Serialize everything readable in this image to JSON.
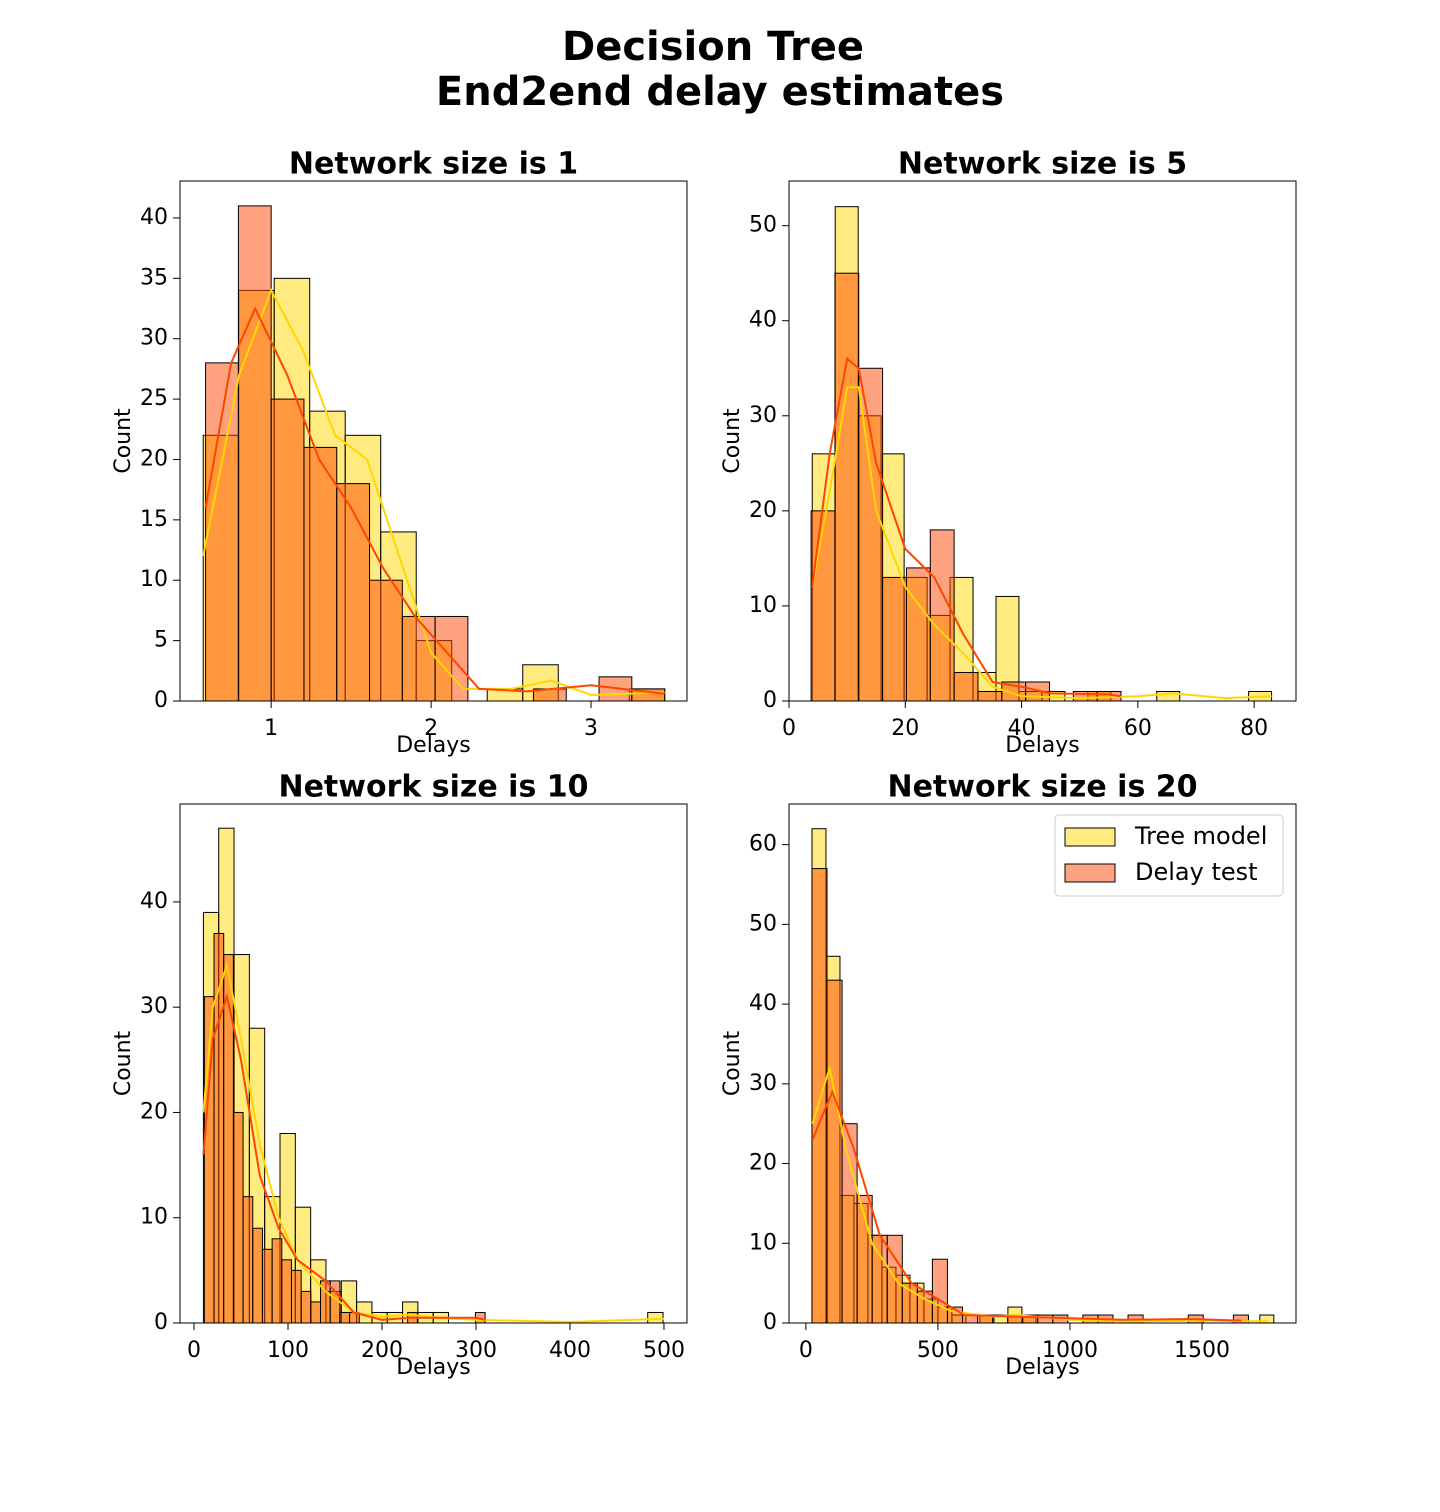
{
  "title": [
    "Decision Tree",
    "End2end delay estimates"
  ],
  "chart_data": [
    {
      "type": "histogram",
      "title": "Network size is 1",
      "x_label": "Delays",
      "y_label": "Count",
      "xlim": [
        0.43,
        3.6
      ],
      "ylim": [
        0,
        43.06
      ],
      "xticks": [
        1,
        2,
        3
      ],
      "yticks": [
        0,
        5,
        10,
        15,
        20,
        25,
        30,
        35,
        40
      ],
      "series": [
        {
          "name": "Tree model",
          "color": "#ffd700",
          "bins": [
            0.575,
            0.797,
            1.019,
            1.241,
            1.463,
            1.685,
            1.907,
            2.129,
            2.351,
            2.573,
            2.795,
            3.017,
            3.239,
            3.461
          ],
          "values": [
            22,
            34,
            35,
            24,
            22,
            14,
            5,
            0,
            1,
            3,
            0,
            0,
            1
          ],
          "kde": {
            "x": [
              0.575,
              0.8,
              1.0,
              1.2,
              1.4,
              1.6,
              1.8,
              2.0,
              2.2,
              2.5,
              2.75,
              3.0,
              3.46
            ],
            "values": [
              12,
              27,
              34,
              29,
              22,
              20,
              12,
              4,
              1,
              1,
              1.7,
              0.5,
              0.7
            ]
          }
        },
        {
          "name": "Delay test",
          "color": "#ff4500",
          "bins": [
            0.59,
            0.795,
            1.0,
            1.205,
            1.41,
            1.615,
            1.82,
            2.025,
            2.23,
            2.435,
            2.64,
            2.845,
            3.05,
            3.255,
            3.46
          ],
          "values": [
            28,
            41,
            25,
            21,
            18,
            10,
            7,
            7,
            0,
            0,
            1,
            0,
            2,
            1
          ],
          "kde": {
            "x": [
              0.59,
              0.75,
              0.9,
              1.1,
              1.3,
              1.5,
              1.7,
              1.9,
              2.1,
              2.3,
              2.6,
              3.0,
              3.46
            ],
            "values": [
              16,
              28,
              32.5,
              27,
              20,
              16,
              11,
              7,
              4,
              1,
              0.8,
              1.3,
              0.6
            ]
          }
        }
      ]
    },
    {
      "type": "histogram",
      "title": "Network size is 5",
      "x_label": "Delays",
      "y_label": "Count",
      "xlim": [
        0,
        87.2
      ],
      "ylim": [
        0,
        54.7
      ],
      "xticks": [
        0,
        20,
        40,
        60,
        80
      ],
      "yticks": [
        0,
        10,
        20,
        30,
        40,
        50
      ],
      "series": [
        {
          "name": "Tree model",
          "color": "#ffd700",
          "bins": [
            4,
            7.95,
            11.9,
            15.85,
            19.8,
            23.75,
            27.7,
            31.65,
            35.6,
            39.55,
            43.5,
            47.45,
            51.4,
            55.35,
            59.3,
            63.25,
            67.2,
            71.15,
            75.1,
            79.05,
            83
          ],
          "values": [
            26,
            52,
            30,
            26,
            13,
            9,
            13,
            3,
            11,
            1,
            1,
            0,
            1,
            0,
            0,
            1,
            0,
            0,
            0,
            1
          ],
          "kde": {
            "x": [
              4,
              7,
              10,
              12,
              15,
              20,
              25,
              30,
              35,
              40,
              50,
              60,
              66,
              75,
              83
            ],
            "values": [
              12,
              22,
              33,
              33,
              20,
              12,
              8,
              5,
              1.5,
              0.5,
              0.3,
              0.5,
              0.8,
              0.3,
              0.5
            ]
          }
        },
        {
          "name": "Delay test",
          "color": "#ff4500",
          "bins": [
            3.8,
            7.9,
            12,
            16.1,
            20.2,
            24.3,
            28.4,
            32.5,
            36.6,
            40.7,
            44.8,
            48.9,
            53,
            57.1
          ],
          "values": [
            20,
            45,
            35,
            13,
            14,
            18,
            3,
            1,
            2,
            2,
            0,
            1,
            1
          ],
          "kde": {
            "x": [
              4,
              7,
              10,
              12,
              15,
              20,
              25,
              30,
              35,
              40,
              45,
              55,
              57
            ],
            "values": [
              12,
              26,
              36,
              35,
              25,
              16,
              13,
              7,
              2,
              1.5,
              0.8,
              0.7,
              0.5
            ]
          }
        }
      ]
    },
    {
      "type": "histogram",
      "title": "Network size is 10",
      "x_label": "Delays",
      "y_label": "Count",
      "xlim": [
        -14.9,
        524.5
      ],
      "ylim": [
        0,
        49.3
      ],
      "xticks": [
        0,
        100,
        200,
        300,
        400,
        500
      ],
      "yticks": [
        0,
        10,
        20,
        30,
        40
      ],
      "series": [
        {
          "name": "Tree model",
          "color": "#ffd700",
          "bins": [
            10,
            26.3,
            42.6,
            58.9,
            75.2,
            91.5,
            107.8,
            124.1,
            140.4,
            156.7,
            173,
            189.3,
            205.6,
            221.9,
            238.2,
            254.5,
            270.8,
            287.1,
            303.4,
            319.7,
            336,
            352.3,
            368.6,
            384.9,
            401.2,
            417.5,
            433.8,
            450.1,
            466.4,
            482.7,
            499
          ],
          "values": [
            39,
            47,
            35,
            28,
            12,
            18,
            11,
            6,
            3,
            4,
            2,
            1,
            1,
            2,
            1,
            1,
            0,
            0,
            0,
            0,
            0,
            0,
            0,
            0,
            0,
            0,
            0,
            0,
            0,
            1
          ],
          "kde": {
            "x": [
              10,
              20,
              35,
              50,
              70,
              90,
              110,
              140,
              170,
              200,
              230,
              260,
              300,
              400,
              500
            ],
            "values": [
              20,
              30,
              34,
              27,
              17,
              10,
              6,
              3,
              1,
              0.6,
              0.8,
              0.5,
              0.3,
              0.1,
              0.4
            ]
          }
        },
        {
          "name": "Delay test",
          "color": "#ff4500",
          "bins": [
            11,
            21.3,
            31.6,
            41.9,
            52.2,
            62.5,
            72.8,
            83.1,
            93.4,
            103.7,
            114,
            124.3,
            134.6,
            144.9,
            155.2,
            165.5,
            175.8,
            186.1,
            196.4,
            206.7,
            217,
            227.3,
            237.6,
            247.9,
            258.2,
            268.5,
            278.8,
            289.1,
            299.4,
            309.7
          ],
          "values": [
            31,
            37,
            35,
            20,
            12,
            9,
            7,
            8,
            6,
            5,
            3,
            2,
            4,
            4,
            1,
            1,
            0,
            0,
            0,
            0,
            0,
            1,
            0,
            0,
            0,
            0,
            0,
            0,
            1
          ],
          "kde": {
            "x": [
              10,
              20,
              35,
              50,
              70,
              90,
              110,
              140,
              170,
              200,
              230,
              300,
              310
            ],
            "values": [
              16,
              27,
              31,
              25,
              14,
              9,
              6,
              4,
              1,
              0.3,
              0.5,
              0.5,
              0.3
            ]
          }
        }
      ]
    },
    {
      "type": "histogram",
      "title": "Network size is 20",
      "x_label": "Delays",
      "y_label": "Count",
      "legend": "upper right",
      "xlim": [
        -64,
        1856
      ],
      "ylim": [
        0,
        65.1
      ],
      "xticks": [
        0,
        500,
        1000,
        1500
      ],
      "yticks": [
        0,
        10,
        20,
        30,
        40,
        50,
        60
      ],
      "series": [
        {
          "name": "Tree model",
          "color": "#ffd700",
          "bins": [
            23,
            76,
            129,
            182,
            235,
            288,
            341,
            394,
            447,
            500,
            553,
            606,
            659,
            712,
            765,
            818,
            871,
            924,
            977,
            1030,
            1083,
            1136,
            1189,
            1242,
            1295,
            1348,
            1401,
            1454,
            1507,
            1560,
            1613,
            1666,
            1719,
            1772
          ],
          "values": [
            62,
            46,
            16,
            15,
            11,
            7,
            6,
            5,
            3,
            2,
            1,
            0,
            1,
            1,
            2,
            1,
            0,
            0,
            0,
            0,
            0,
            0,
            0,
            0,
            0,
            0,
            0,
            0,
            0,
            0,
            0,
            0,
            1
          ],
          "kde": {
            "x": [
              25,
              90,
              150,
              250,
              350,
              450,
              550,
              700,
              800,
              1000,
              1200,
              1500,
              1750
            ],
            "values": [
              25,
              32,
              22,
              10,
              5,
              3,
              1.5,
              0.8,
              1,
              0.4,
              0.2,
              0.3,
              0.2
            ]
          }
        },
        {
          "name": "Delay test",
          "color": "#ff4500",
          "bins": [
            23,
            80,
            137,
            194,
            251,
            308,
            365,
            422,
            479,
            536,
            593,
            650,
            707,
            764,
            821,
            878,
            935,
            992,
            1049,
            1106,
            1163,
            1220,
            1277,
            1334,
            1391,
            1448,
            1505,
            1562,
            1619,
            1676
          ],
          "values": [
            57,
            43,
            25,
            16,
            11,
            11,
            5,
            4,
            8,
            2,
            1,
            1,
            0,
            1,
            1,
            1,
            1,
            0,
            1,
            1,
            0,
            1,
            0,
            0,
            0,
            1,
            0,
            0,
            1
          ],
          "kde": {
            "x": [
              25,
              100,
              180,
              280,
              400,
              500,
              600,
              800,
              1000,
              1200,
              1450,
              1650
            ],
            "values": [
              23,
              29,
              22,
              11,
              5,
              3,
              1,
              0.8,
              0.6,
              0.4,
              0.5,
              0.3
            ]
          }
        }
      ]
    }
  ]
}
